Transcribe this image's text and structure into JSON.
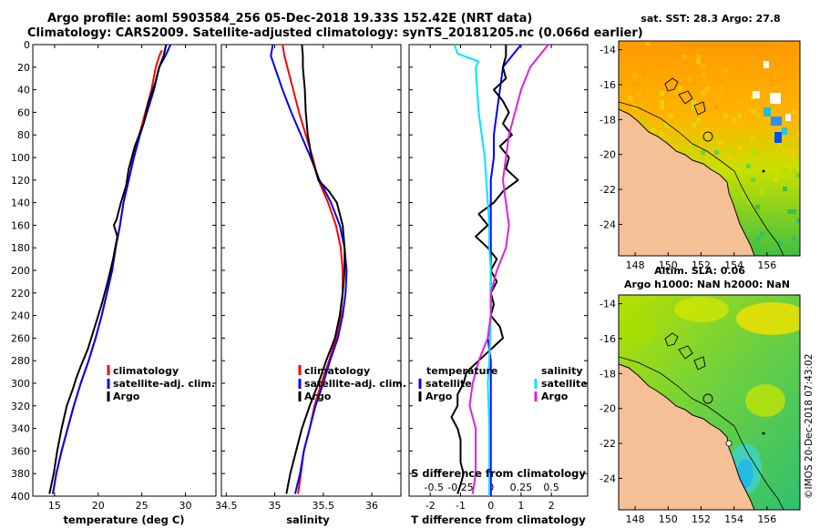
{
  "title_line1": "Argo profile: aoml 5903584_256 05-Dec-2018 19.33S 152.42E (NRT data)",
  "title_line2": "Climatology: CARS2009. Satellite-adjusted climatology: synTS_20181205.nc (0.066d earlier)",
  "colors": {
    "climatology": "#ff0000",
    "satellite": "#0000ff",
    "argo": "#000000",
    "sat_salinity": "#00e5ff",
    "argo_salinity": "#e020e0",
    "land": "#f5c095",
    "coast": "#000000",
    "missing": "#ffffff"
  },
  "depth_ticks": [
    "0",
    "20",
    "40",
    "60",
    "80",
    "100",
    "120",
    "140",
    "160",
    "180",
    "200",
    "220",
    "240",
    "260",
    "280",
    "300",
    "320",
    "340",
    "360",
    "380",
    "400"
  ],
  "chart_data": [
    {
      "type": "line",
      "name": "temperature-profile",
      "xlabel": "temperature (deg C)",
      "ylabel": "depth",
      "xlim": [
        12.5,
        33.5
      ],
      "ylim": [
        400,
        0
      ],
      "xticks": [
        15,
        20,
        25,
        30
      ],
      "xtick_labels": [
        "15",
        "20",
        "25",
        "30"
      ],
      "legend": [
        "climatology",
        "satellite-adj. clim.",
        "Argo"
      ],
      "series": [
        {
          "name": "climatology",
          "color": "red",
          "depth": [
            5,
            10,
            20,
            40,
            60,
            80,
            100,
            120,
            140,
            160,
            180,
            200,
            220,
            240,
            260,
            280,
            300,
            320,
            340,
            360,
            380,
            398
          ],
          "values": [
            27.3,
            27.0,
            26.6,
            26.1,
            25.4,
            24.7,
            24.0,
            23.5,
            22.9,
            22.5,
            22.0,
            21.6,
            21.0,
            20.4,
            19.7,
            18.9,
            18.0,
            17.2,
            16.5,
            15.8,
            15.2,
            14.8
          ]
        },
        {
          "name": "satellite-adj. clim.",
          "color": "blue",
          "depth": [
            0,
            10,
            20,
            40,
            60,
            80,
            100,
            120,
            140,
            160,
            180,
            200,
            220,
            240,
            260,
            280,
            300,
            320,
            340,
            360,
            380,
            398
          ],
          "values": [
            28.3,
            27.7,
            27.0,
            26.4,
            25.6,
            24.8,
            24.1,
            23.5,
            22.9,
            22.5,
            22.0,
            21.6,
            21.0,
            20.4,
            19.7,
            18.9,
            18.0,
            17.2,
            16.5,
            15.8,
            15.2,
            14.8
          ]
        },
        {
          "name": "Argo",
          "color": "black",
          "depth": [
            0,
            10,
            20,
            35,
            50,
            70,
            90,
            110,
            125,
            140,
            155,
            160,
            170,
            190,
            210,
            230,
            250,
            270,
            285,
            295,
            305,
            320,
            340,
            360,
            380,
            398
          ],
          "values": [
            27.8,
            27.5,
            27.0,
            26.5,
            25.8,
            25.2,
            24.2,
            23.5,
            23.2,
            22.6,
            22.1,
            21.8,
            22.2,
            21.7,
            21.1,
            20.4,
            19.6,
            18.8,
            18.0,
            17.5,
            17.1,
            16.4,
            15.8,
            15.3,
            14.9,
            14.4
          ]
        }
      ]
    },
    {
      "type": "line",
      "name": "salinity-profile",
      "xlabel": "salinity",
      "ylabel": "depth",
      "xlim": [
        34.45,
        36.3
      ],
      "ylim": [
        400,
        0
      ],
      "xticks": [
        34.5,
        35,
        35.5,
        36
      ],
      "xtick_labels": [
        "34.5",
        "35",
        "35.5",
        "36"
      ],
      "legend": [
        "climatology",
        "satellite-adj. clim.",
        "Argo"
      ],
      "series": [
        {
          "name": "climatology",
          "color": "red",
          "depth": [
            0,
            10,
            20,
            40,
            60,
            80,
            100,
            120,
            140,
            160,
            180,
            200,
            220,
            240,
            260,
            280,
            300,
            320,
            340,
            360,
            380,
            398
          ],
          "values": [
            35.08,
            35.1,
            35.13,
            35.19,
            35.25,
            35.32,
            35.39,
            35.45,
            35.55,
            35.63,
            35.68,
            35.7,
            35.7,
            35.68,
            35.63,
            35.56,
            35.48,
            35.41,
            35.36,
            35.3,
            35.27,
            35.24
          ]
        },
        {
          "name": "satellite-adj. clim.",
          "color": "blue",
          "depth": [
            0,
            10,
            20,
            40,
            60,
            80,
            100,
            120,
            140,
            160,
            180,
            200,
            220,
            240,
            260,
            280,
            300,
            320,
            340,
            360,
            380,
            398
          ],
          "values": [
            34.98,
            34.96,
            35.0,
            35.08,
            35.17,
            35.27,
            35.37,
            35.46,
            35.58,
            35.67,
            35.72,
            35.74,
            35.73,
            35.7,
            35.65,
            35.57,
            35.5,
            35.42,
            35.36,
            35.3,
            35.26,
            35.21
          ]
        },
        {
          "name": "Argo",
          "color": "black",
          "depth": [
            0,
            10,
            20,
            40,
            60,
            80,
            100,
            120,
            130,
            140,
            160,
            180,
            200,
            220,
            240,
            260,
            280,
            300,
            320,
            340,
            360,
            380,
            398
          ],
          "values": [
            35.28,
            35.29,
            35.29,
            35.31,
            35.32,
            35.34,
            35.38,
            35.45,
            35.56,
            35.64,
            35.7,
            35.72,
            35.72,
            35.7,
            35.67,
            35.62,
            35.53,
            35.45,
            35.36,
            35.28,
            35.22,
            35.16,
            35.12
          ]
        }
      ]
    },
    {
      "type": "line",
      "name": "difference-profile",
      "xlabel": "T difference from climatology",
      "xlabel_top": "S difference from climatology",
      "xlim": [
        -2.7,
        3.2
      ],
      "ylim": [
        400,
        0
      ],
      "xticks": [
        -2,
        -1,
        0,
        1,
        2
      ],
      "xtick_labels": [
        "-2",
        "-1",
        "0",
        "1",
        "2"
      ],
      "s_ticks_pos": [
        -1.88,
        -1.0,
        0.0,
        1.0,
        2.0
      ],
      "s_tick_labels": [
        "-0.5",
        "-0.25",
        "0",
        "0.25",
        "0.5"
      ],
      "legend_title_left": "temperature",
      "legend_title_right": "salinity",
      "legend": [
        "satellite",
        "Argo",
        "satellite",
        "Argo"
      ],
      "series": [
        {
          "name": "T satellite",
          "color": "blue",
          "depth": [
            0,
            10,
            20,
            40,
            60,
            80,
            100,
            120,
            160,
            200,
            240,
            260,
            280,
            300,
            400
          ],
          "values": [
            1.0,
            0.7,
            0.4,
            0.3,
            0.2,
            0.1,
            0.1,
            0.0,
            0.0,
            0.0,
            0.0,
            -0.1,
            0.0,
            0.0,
            0.0
          ]
        },
        {
          "name": "T Argo",
          "color": "black",
          "depth": [
            0,
            10,
            20,
            30,
            40,
            50,
            60,
            70,
            80,
            90,
            100,
            110,
            120,
            130,
            140,
            150,
            160,
            170,
            180,
            190,
            200,
            210,
            220,
            230,
            240,
            250,
            260,
            270,
            280,
            290,
            300,
            310,
            320,
            330,
            340,
            350,
            360,
            370,
            380,
            390,
            398
          ],
          "values": [
            0.5,
            0.5,
            0.4,
            0.5,
            0.1,
            0.4,
            0.6,
            0.4,
            0.7,
            0.3,
            0.6,
            0.5,
            0.9,
            0.4,
            0.1,
            -0.4,
            -0.1,
            -0.5,
            -0.1,
            0.2,
            0.0,
            0.2,
            0.0,
            0.1,
            0.0,
            0.3,
            0.4,
            0.0,
            -0.4,
            -0.8,
            -0.9,
            -1.1,
            -1.1,
            -1.3,
            -1.1,
            -1.0,
            -1.0,
            -1.0,
            -0.9,
            -1.0,
            -1.1
          ]
        },
        {
          "name": "S satellite",
          "color": "cyan",
          "depth": [
            0,
            8,
            15,
            20,
            40,
            60,
            80,
            100,
            120,
            140,
            160,
            180,
            200,
            240,
            280,
            300,
            340,
            400
          ],
          "values": [
            -1.2,
            -1.1,
            -0.4,
            -0.5,
            -0.45,
            -0.4,
            -0.3,
            -0.2,
            -0.15,
            -0.1,
            -0.05,
            -0.05,
            0.0,
            0.0,
            -0.05,
            -0.1,
            -0.05,
            -0.05
          ]
        },
        {
          "name": "S Argo",
          "color": "magenta",
          "depth": [
            0,
            10,
            20,
            40,
            60,
            80,
            100,
            120,
            140,
            160,
            180,
            200,
            220,
            240,
            260,
            280,
            300,
            320,
            340,
            360,
            380,
            398
          ],
          "values": [
            1.9,
            1.6,
            1.3,
            1.0,
            0.8,
            0.6,
            0.5,
            0.4,
            0.5,
            0.6,
            0.5,
            0.2,
            0.0,
            0.0,
            -0.1,
            -0.4,
            -0.6,
            -0.7,
            -0.5,
            -0.5,
            -0.5,
            -0.6
          ]
        }
      ]
    }
  ],
  "maps": {
    "sst": {
      "title": "sat. SST: 28.3  Argo: 27.8",
      "lon_ticks": [
        "148",
        "150",
        "152",
        "154",
        "156"
      ],
      "lat_ticks": [
        "-14",
        "-16",
        "-18",
        "-20",
        "-22",
        "-24"
      ],
      "colorbar": "none"
    },
    "sla": {
      "title_line1": "Altim. SLA: 0.06",
      "title_line2": "Argo h1000: NaN h2000: NaN",
      "lon_ticks": [
        "148",
        "150",
        "152",
        "154",
        "156"
      ],
      "lat_ticks": [
        "-14",
        "-16",
        "-18",
        "-20",
        "-22",
        "-24"
      ]
    }
  },
  "stamp": "©IMOS 20-Dec-2018 07:43:02"
}
